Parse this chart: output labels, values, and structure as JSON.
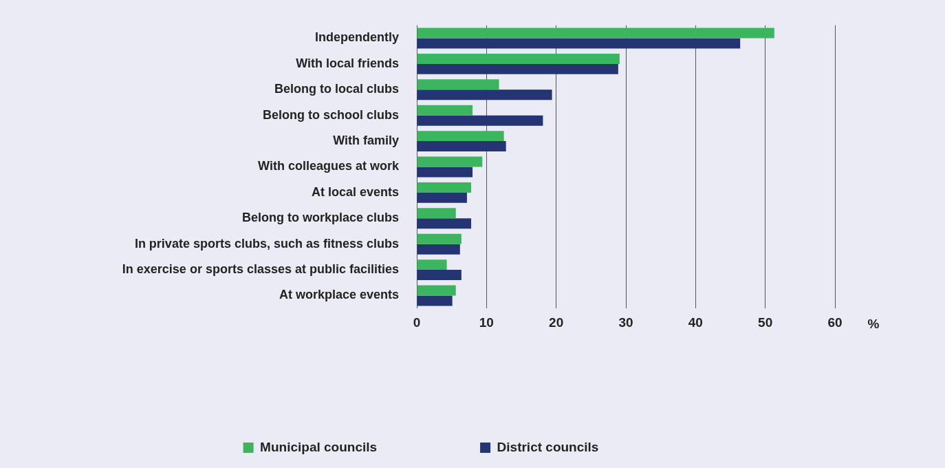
{
  "chart_data": {
    "type": "bar",
    "orientation": "horizontal",
    "xlabel": "%",
    "categories": [
      "Independently",
      "With local friends",
      "Belong to local clubs",
      "Belong to school clubs",
      "With family",
      "With colleagues at work",
      "At local events",
      "Belong to workplace clubs",
      "In private sports clubs, such as fitness clubs",
      "In exercise or sports classes at public facilities",
      "At workplace events"
    ],
    "series": [
      {
        "name": "Municipal councils",
        "color": "#3bb55e",
        "values": [
          51.3,
          29.1,
          11.8,
          8.0,
          12.5,
          9.4,
          7.8,
          5.6,
          6.4,
          4.3,
          5.6
        ]
      },
      {
        "name": "District councils",
        "color": "#253574",
        "values": [
          46.4,
          28.9,
          19.4,
          18.1,
          12.8,
          8.0,
          7.2,
          7.8,
          6.2,
          6.4,
          5.1
        ]
      }
    ],
    "xlim": [
      0,
      60
    ],
    "xticks": [
      0,
      10,
      20,
      30,
      40,
      50,
      60
    ],
    "grid": "x",
    "legend": "bottom"
  }
}
